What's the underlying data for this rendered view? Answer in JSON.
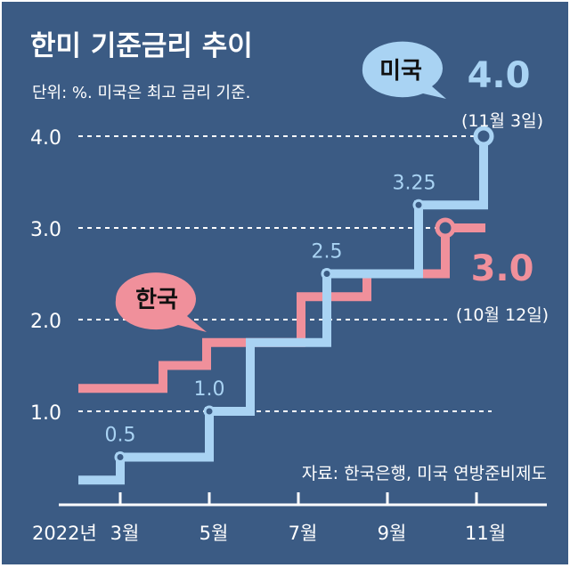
{
  "chart_data": {
    "type": "line",
    "step": true,
    "title": "한미 기준금리 추이",
    "subtitle": "단위: %. 미국은 최고 금리 기준.",
    "source": "자료: 한국은행, 미국 연방준비제도",
    "x_tick_labels": [
      {
        "month": 3,
        "label": "3월"
      },
      {
        "month": 5,
        "label": "5월"
      },
      {
        "month": 7,
        "label": "7월"
      },
      {
        "month": 9,
        "label": "9월"
      },
      {
        "month": 11,
        "label": "11월"
      }
    ],
    "x_year_label": "2022년",
    "y_ticks": [
      {
        "value": 1.0,
        "label": "1.0"
      },
      {
        "value": 2.0,
        "label": "2.0"
      },
      {
        "value": 3.0,
        "label": "3.0"
      },
      {
        "value": 4.0,
        "label": "4.0"
      }
    ],
    "ylim": [
      0,
      4
    ],
    "grid": "dashed horizontal",
    "series": [
      {
        "name": "미국",
        "color": "#a9d3f3",
        "points": [
          [
            2.06,
            0.25
          ],
          [
            3.0,
            0.5
          ],
          [
            5.0,
            1.0
          ],
          [
            5.92,
            1.75
          ],
          [
            7.64,
            2.5
          ],
          [
            9.7,
            3.25
          ],
          [
            11.16,
            4.0
          ]
        ],
        "end_month": 11.16,
        "point_labels": [
          {
            "month": 3.0,
            "value": 0.5,
            "label": "0.5"
          },
          {
            "month": 5.0,
            "value": 1.0,
            "label": "1.0"
          },
          {
            "month": 7.64,
            "value": 2.5,
            "label": "2.5"
          },
          {
            "month": 9.7,
            "value": 3.25,
            "label": "3.25"
          }
        ],
        "final_value_label": "4.0",
        "final_date_label": "(11월 3일)"
      },
      {
        "name": "한국",
        "color": "#f0909b",
        "points": [
          [
            2.06,
            1.25
          ],
          [
            3.96,
            1.5
          ],
          [
            4.94,
            1.75
          ],
          [
            7.06,
            2.25
          ],
          [
            8.54,
            2.5
          ],
          [
            10.3,
            3.0
          ]
        ],
        "end_month": 11.2,
        "final_value_label": "3.0",
        "final_date_label": "(10월 12일)"
      }
    ]
  },
  "colors": {
    "background": "#3b5b84",
    "text": "#ffffff",
    "us": "#a9d3f3",
    "korea": "#f0909b"
  }
}
